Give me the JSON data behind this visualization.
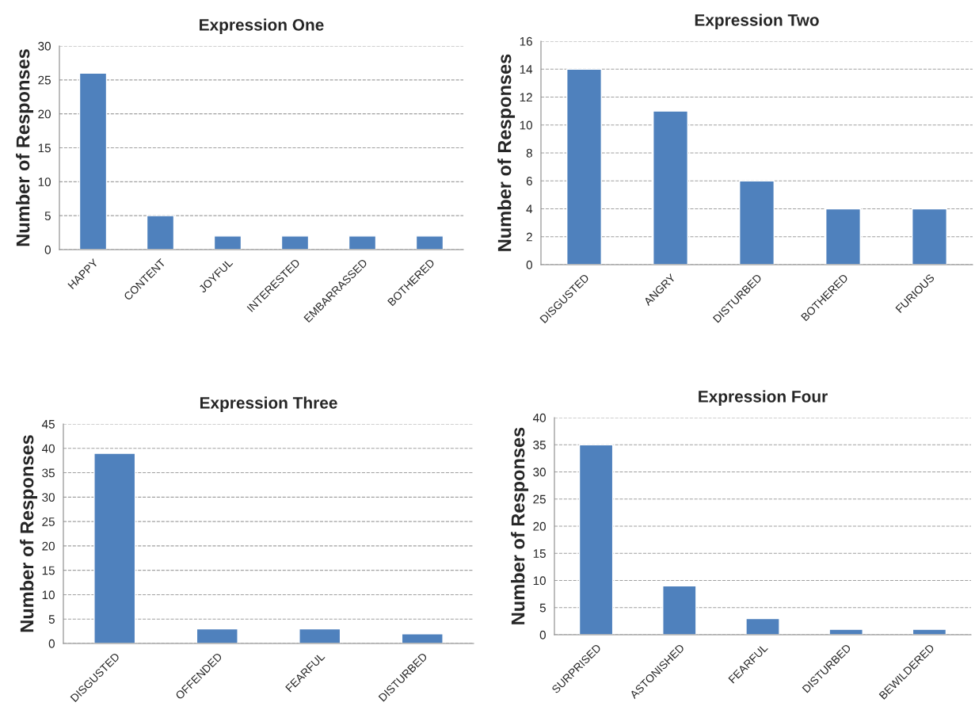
{
  "chart_data": [
    {
      "type": "bar",
      "title": "Expression One",
      "ylabel": "Number of Responses",
      "categories": [
        "HAPPY",
        "CONTENT",
        "JOYFUL",
        "INTERESTED",
        "EMBARRASSED",
        "BOTHERED"
      ],
      "values": [
        26,
        5,
        2,
        2,
        2,
        2
      ],
      "color": "#4f81bd",
      "ylim": [
        0,
        30
      ],
      "yticks": [
        0,
        5,
        10,
        15,
        20,
        25,
        30
      ],
      "grid": "y"
    },
    {
      "type": "bar",
      "title": "Expression Two",
      "ylabel": "Number of Responses",
      "categories": [
        "DISGUSTED",
        "ANGRY",
        "DISTURBED",
        "BOTHERED",
        "FURIOUS"
      ],
      "values": [
        14,
        11,
        6,
        4,
        4
      ],
      "color": "#4f81bd",
      "ylim": [
        0,
        16
      ],
      "yticks": [
        0,
        2,
        4,
        6,
        8,
        10,
        12,
        14,
        16
      ],
      "grid": "y"
    },
    {
      "type": "bar",
      "title": "Expression Three",
      "ylabel": "Number of Responses",
      "categories": [
        "DISGUSTED",
        "OFFENDED",
        "FEARFUL",
        "DISTURBED"
      ],
      "values": [
        39,
        3,
        3,
        2
      ],
      "color": "#4f81bd",
      "ylim": [
        0,
        45
      ],
      "yticks": [
        0,
        5,
        10,
        15,
        20,
        25,
        30,
        35,
        40,
        45
      ],
      "grid": "y"
    },
    {
      "type": "bar",
      "title": "Expression Four",
      "ylabel": "Number of Responses",
      "categories": [
        "SURPRISED",
        "ASTONISHED",
        "FEARFUL",
        "DISTURBED",
        "BEWILDERED"
      ],
      "values": [
        35,
        9,
        3,
        1,
        1
      ],
      "color": "#4f81bd",
      "ylim": [
        0,
        40
      ],
      "yticks": [
        0,
        5,
        10,
        15,
        20,
        25,
        30,
        35,
        40
      ],
      "grid": "y"
    }
  ]
}
